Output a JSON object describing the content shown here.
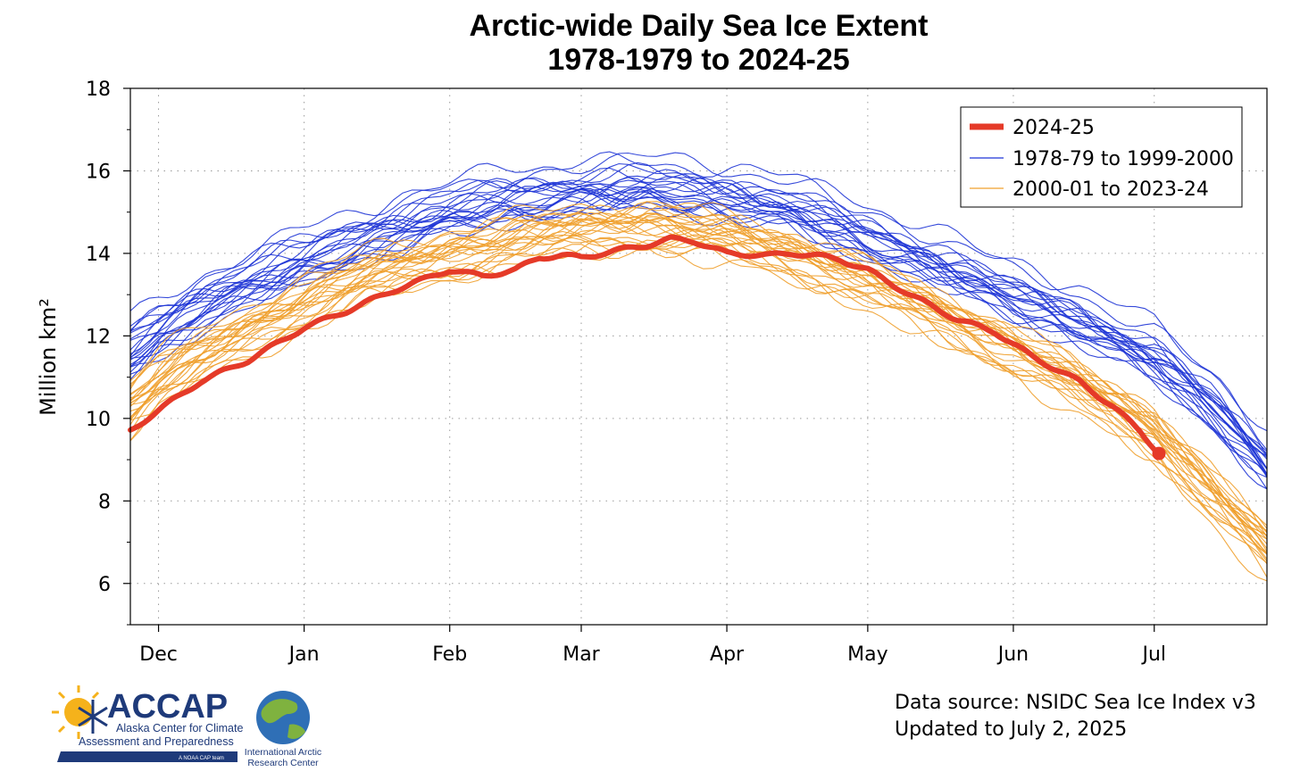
{
  "chart_data": {
    "type": "line",
    "title": "Arctic-wide Daily Sea Ice Extent",
    "subtitle": "1978-1979 to 2024-25",
    "ylabel": "Million km²",
    "xlabel": "",
    "ylim": [
      5,
      18
    ],
    "yticks": [
      6,
      8,
      10,
      12,
      14,
      16,
      18
    ],
    "xticks": [
      "Dec",
      "Jan",
      "Feb",
      "Mar",
      "Apr",
      "May",
      "Jun",
      "Jul"
    ],
    "x_range_days_from_dec1": [
      -6,
      236
    ],
    "grid": true,
    "legend_position": "top-right",
    "colors": {
      "current": "#e53a28",
      "early": "#1f35d6",
      "recent": "#f0a02e"
    },
    "series": [
      {
        "name": "2024-25",
        "x_dates": [
          "Nov 25",
          "Dec 1",
          "Dec 10",
          "Dec 20",
          "Jan 1",
          "Jan 10",
          "Jan 20",
          "Feb 1",
          "Feb 8",
          "Feb 15",
          "Feb 20",
          "Feb 25",
          "Mar 1",
          "Mar 10",
          "Mar 15",
          "Mar 20",
          "Mar 25",
          "Apr 1",
          "Apr 10",
          "Apr 15",
          "Apr 20",
          "Apr 25",
          "May 1",
          "May 10",
          "May 20",
          "May 28",
          "Jun 5",
          "Jun 15",
          "Jun 22",
          "Jun 28",
          "Jul 2"
        ],
        "x_days": [
          -6,
          0,
          9,
          19,
          31,
          40,
          50,
          62,
          69,
          76,
          81,
          86,
          90,
          99,
          104,
          109,
          114,
          121,
          130,
          135,
          140,
          145,
          151,
          160,
          170,
          178,
          186,
          196,
          203,
          209,
          213
        ],
        "values": [
          9.7,
          10.2,
          10.9,
          11.4,
          12.2,
          12.6,
          13.1,
          13.6,
          13.45,
          13.6,
          13.9,
          13.95,
          13.9,
          14.1,
          14.2,
          14.35,
          14.3,
          14.0,
          13.95,
          14.0,
          13.95,
          13.85,
          13.6,
          13.0,
          12.4,
          12.1,
          11.5,
          10.9,
          10.3,
          9.7,
          9.15
        ]
      },
      {
        "name": "1978-79 to 1999-2000",
        "x_days": [
          -6,
          0,
          10,
          20,
          31,
          45,
          62,
          75,
          90,
          104,
          121,
          135,
          151,
          165,
          182,
          196,
          212,
          225,
          236
        ],
        "mean": [
          11.7,
          12.2,
          12.9,
          13.4,
          13.9,
          14.5,
          15.1,
          15.4,
          15.6,
          15.7,
          15.5,
          15.2,
          14.5,
          13.9,
          13.1,
          12.5,
          11.6,
          10.4,
          9.0
        ]
      },
      {
        "name": "2000-01 to 2023-24",
        "x_days": [
          -6,
          0,
          10,
          20,
          31,
          45,
          62,
          75,
          90,
          104,
          121,
          135,
          151,
          165,
          182,
          196,
          212,
          225,
          236
        ],
        "mean": [
          10.4,
          11.0,
          11.7,
          12.3,
          12.9,
          13.6,
          14.1,
          14.4,
          14.7,
          14.8,
          14.5,
          14.1,
          13.4,
          12.7,
          11.8,
          10.9,
          9.8,
          8.2,
          6.9
        ]
      }
    ]
  },
  "footer": {
    "source_line": "Data source: NSIDC Sea Ice Index v3",
    "updated_line": "Updated to July 2, 2025"
  },
  "logos": {
    "accap_name": "ACCAP",
    "accap_line1": "Alaska Center for Climate",
    "accap_line2": "Assessment and Preparedness",
    "accap_tag": "A NOAA CAP team",
    "iarc_line1": "International Arctic",
    "iarc_line2": "Research Center"
  }
}
